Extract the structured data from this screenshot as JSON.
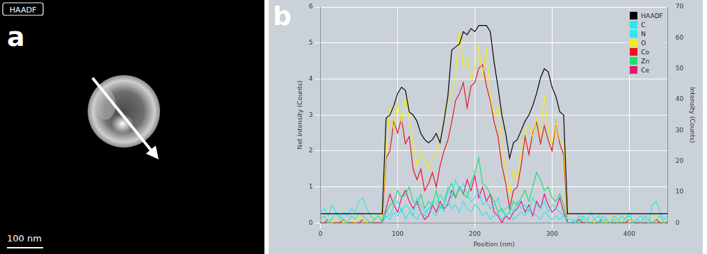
{
  "image_panel": {
    "letter": "a",
    "label": "HAADF",
    "scale_bar": "100 nm"
  },
  "chart_data": {
    "type": "line",
    "panel_label": "b",
    "x_label": "Position (nm)",
    "y_label": "Net intensity (Counts)",
    "y2_label": "Intensity (Counts)",
    "x": [
      0,
      5,
      10,
      15,
      20,
      25,
      30,
      35,
      40,
      45,
      50,
      55,
      60,
      65,
      70,
      75,
      80,
      85,
      90,
      95,
      100,
      105,
      110,
      115,
      120,
      125,
      130,
      135,
      140,
      145,
      150,
      155,
      160,
      165,
      170,
      175,
      180,
      185,
      190,
      195,
      200,
      205,
      210,
      215,
      220,
      225,
      230,
      235,
      240,
      245,
      250,
      255,
      260,
      265,
      270,
      275,
      280,
      285,
      290,
      295,
      300,
      305,
      310,
      315,
      320,
      325,
      330,
      335,
      340,
      345,
      350,
      355,
      360,
      365,
      370,
      375,
      380,
      385,
      390,
      395,
      400,
      405,
      410,
      415,
      420,
      425,
      430,
      435,
      440,
      445,
      450
    ],
    "xlim": [
      0,
      450
    ],
    "xticks": [
      0,
      100,
      200,
      300,
      400
    ],
    "ylim": [
      0,
      6
    ],
    "yticks": [
      0,
      1,
      2,
      3,
      4,
      5,
      6
    ],
    "y2lim": [
      0,
      70
    ],
    "y2ticks": [
      0,
      10,
      20,
      30,
      40,
      50,
      60,
      70
    ],
    "grid": true,
    "legend": "upper right",
    "series": [
      {
        "name": "HAADF",
        "color": "#000000",
        "axis": "y2",
        "values": [
          3,
          3,
          3,
          3,
          3,
          3,
          3,
          3,
          3,
          3,
          3,
          3,
          3,
          3,
          3,
          3,
          3,
          34,
          35,
          38,
          42,
          44,
          43,
          36,
          35,
          33,
          29,
          27,
          26,
          27,
          29,
          26,
          33,
          41,
          56,
          57,
          58,
          62,
          61,
          63,
          62,
          64,
          64,
          64,
          62,
          52,
          44,
          35,
          29,
          21,
          26,
          27,
          30,
          33,
          35,
          38,
          42,
          47,
          50,
          49,
          44,
          41,
          36,
          35,
          3,
          3,
          3,
          3,
          3,
          3,
          3,
          3,
          3,
          3,
          3,
          3,
          3,
          3,
          3,
          3,
          3,
          3,
          3,
          3,
          3,
          3,
          3,
          3,
          3,
          3,
          3
        ]
      },
      {
        "name": "C",
        "color": "#33e3ee",
        "values": [
          0.3,
          0.4,
          0.2,
          0.5,
          0.3,
          0.1,
          0.3,
          0.2,
          0.4,
          0.3,
          0.6,
          0.7,
          0.4,
          0.2,
          0.1,
          0.2,
          0.1,
          0.3,
          0.2,
          0.5,
          0.6,
          0.3,
          0.5,
          0.4,
          0.2,
          0.7,
          0.5,
          0.3,
          0.4,
          0.6,
          0.5,
          0.8,
          0.6,
          1.0,
          0.7,
          1.2,
          0.9,
          1.1,
          0.8,
          0.6,
          0.7,
          0.9,
          0.5,
          0.6,
          0.4,
          0.5,
          0.7,
          0.3,
          0.4,
          0.5,
          0.3,
          0.6,
          0.4,
          0.5,
          0.3,
          0.7,
          0.5,
          0.4,
          0.6,
          0.3,
          0.5,
          0.4,
          0.3,
          0.2,
          0.1,
          0.1,
          0,
          0.2,
          0.1,
          0,
          0.3,
          0.1,
          0,
          0.2,
          0.1,
          0,
          0.1,
          0,
          0.2,
          0.1,
          0.3,
          0,
          0.1,
          0.2,
          0.1,
          0,
          0.5,
          0.6,
          0.3,
          0.1,
          0.2
        ]
      },
      {
        "name": "N",
        "color": "#33e3ee",
        "values": [
          0.1,
          0.2,
          0,
          0.1,
          0.3,
          0.2,
          0.1,
          0,
          0.2,
          0.1,
          0.3,
          0.2,
          0.1,
          0,
          0.1,
          0.2,
          0,
          0.2,
          0.1,
          0.3,
          0.2,
          0.4,
          0.1,
          0.3,
          0.2,
          0.1,
          0.3,
          0.2,
          0.4,
          0.3,
          0.2,
          0.5,
          0.3,
          0.6,
          0.4,
          0.5,
          0.3,
          0.6,
          0.4,
          0.3,
          0.5,
          0.4,
          0.2,
          0.3,
          0.1,
          0.2,
          0.3,
          0.1,
          0.2,
          0.3,
          0.1,
          0.2,
          0.3,
          0.2,
          0.4,
          0.3,
          0.2,
          0.1,
          0.3,
          0.2,
          0.1,
          0.2,
          0.1,
          0.2,
          0,
          0,
          0.1,
          0,
          0.2,
          0.1,
          0,
          0.1,
          0.2,
          0,
          0.1,
          0,
          0.2,
          0.1,
          0,
          0.1,
          0.2,
          0,
          0.1,
          0,
          0.2,
          0.1,
          0,
          0.1,
          0.2,
          0,
          0.1
        ]
      },
      {
        "name": "O",
        "color": "#f2ec1a",
        "values": [
          0.1,
          0.2,
          0.1,
          0,
          0.1,
          0.2,
          0,
          0.1,
          0.1,
          0,
          0.2,
          0.1,
          0,
          0.1,
          0.2,
          0.1,
          0.1,
          2.0,
          3.2,
          2.6,
          3.3,
          2.8,
          3.5,
          2.9,
          2.2,
          1.6,
          2.0,
          1.7,
          1.5,
          1.8,
          1.9,
          2.3,
          2.8,
          3.4,
          3.6,
          4.1,
          5.4,
          4.3,
          4.6,
          4.0,
          4.3,
          4.9,
          4.1,
          4.8,
          3.5,
          3.0,
          3.2,
          2.2,
          1.4,
          0.8,
          1.5,
          1.2,
          1.9,
          2.6,
          2.7,
          2.4,
          2.9,
          2.5,
          3.5,
          2.6,
          2.2,
          2.8,
          2.3,
          2.2,
          0.1,
          0.1,
          0,
          0.2,
          0.1,
          0,
          0.1,
          0,
          0.2,
          0.1,
          0,
          0.1,
          0.2,
          0,
          0.1,
          0.2,
          0.1,
          0,
          0.1,
          0.2,
          0.1,
          0,
          0.1,
          0.2,
          0.1,
          0,
          0.1
        ]
      },
      {
        "name": "Co",
        "color": "#e8141e",
        "values": [
          0,
          0,
          0.1,
          0,
          0,
          0,
          0.1,
          0,
          0,
          0,
          0,
          0.1,
          0,
          0,
          0,
          0,
          0,
          1.8,
          2.0,
          2.8,
          2.5,
          2.9,
          2.2,
          2.4,
          1.5,
          1.2,
          1.5,
          0.9,
          1.1,
          1.4,
          1.0,
          1.6,
          2.0,
          2.3,
          2.8,
          3.4,
          3.6,
          3.9,
          3.2,
          3.8,
          3.9,
          4.3,
          4.4,
          3.8,
          3.4,
          2.8,
          2.4,
          1.6,
          1.1,
          0.4,
          0.9,
          1.0,
          1.6,
          2.4,
          1.9,
          2.5,
          2.8,
          2.2,
          2.7,
          2.3,
          2.0,
          2.8,
          2.2,
          1.9,
          0,
          0,
          0,
          0.1,
          0,
          0,
          0,
          0,
          0,
          0.1,
          0,
          0,
          0,
          0,
          0,
          0,
          0.1,
          0,
          0,
          0,
          0,
          0,
          0,
          0.1,
          0,
          0,
          0
        ]
      },
      {
        "name": "Zn",
        "color": "#22dd6e",
        "values": [
          0,
          0,
          0,
          0,
          0,
          0,
          0,
          0,
          0,
          0,
          0,
          0,
          0,
          0,
          0,
          0,
          0,
          0.3,
          0.5,
          0.6,
          0.9,
          0.7,
          0.8,
          1.0,
          0.6,
          0.5,
          0.8,
          0.4,
          0.6,
          0.5,
          0.9,
          0.4,
          0.5,
          0.9,
          1.1,
          0.7,
          1.0,
          0.8,
          0.7,
          1.1,
          1.4,
          1.8,
          1.1,
          1.0,
          0.8,
          0.6,
          0.3,
          0.4,
          0.2,
          0.3,
          0.6,
          0.5,
          0.7,
          0.9,
          0.6,
          1.0,
          1.4,
          1.2,
          0.9,
          1.0,
          0.7,
          0.6,
          0.8,
          0.5,
          0,
          0,
          0,
          0,
          0,
          0,
          0,
          0,
          0,
          0,
          0,
          0,
          0,
          0,
          0,
          0,
          0,
          0,
          0,
          0,
          0,
          0,
          0,
          0,
          0,
          0,
          0
        ]
      },
      {
        "name": "Ce",
        "color": "#e8137a",
        "values": [
          0,
          0,
          0,
          0,
          0,
          0,
          0,
          0,
          0,
          0,
          0,
          0,
          0,
          0,
          0,
          0,
          0,
          0.4,
          0.8,
          0.5,
          0.3,
          0.7,
          0.9,
          0.6,
          0.4,
          0.6,
          0.3,
          0.1,
          0.2,
          0.5,
          0.3,
          0.6,
          0.4,
          0.5,
          0.9,
          0.7,
          1.0,
          0.8,
          1.2,
          0.9,
          1.3,
          0.7,
          1.0,
          0.6,
          0.8,
          0.3,
          0.2,
          0,
          0.2,
          0.1,
          0.3,
          0.4,
          0.6,
          0.3,
          0.5,
          0.2,
          0.6,
          0.4,
          0.8,
          0.5,
          0.3,
          0.4,
          0.7,
          0.3,
          0,
          0,
          0,
          0,
          0,
          0,
          0,
          0,
          0,
          0,
          0,
          0,
          0,
          0,
          0,
          0,
          0,
          0,
          0,
          0,
          0,
          0,
          0,
          0,
          0,
          0,
          0
        ]
      }
    ]
  }
}
